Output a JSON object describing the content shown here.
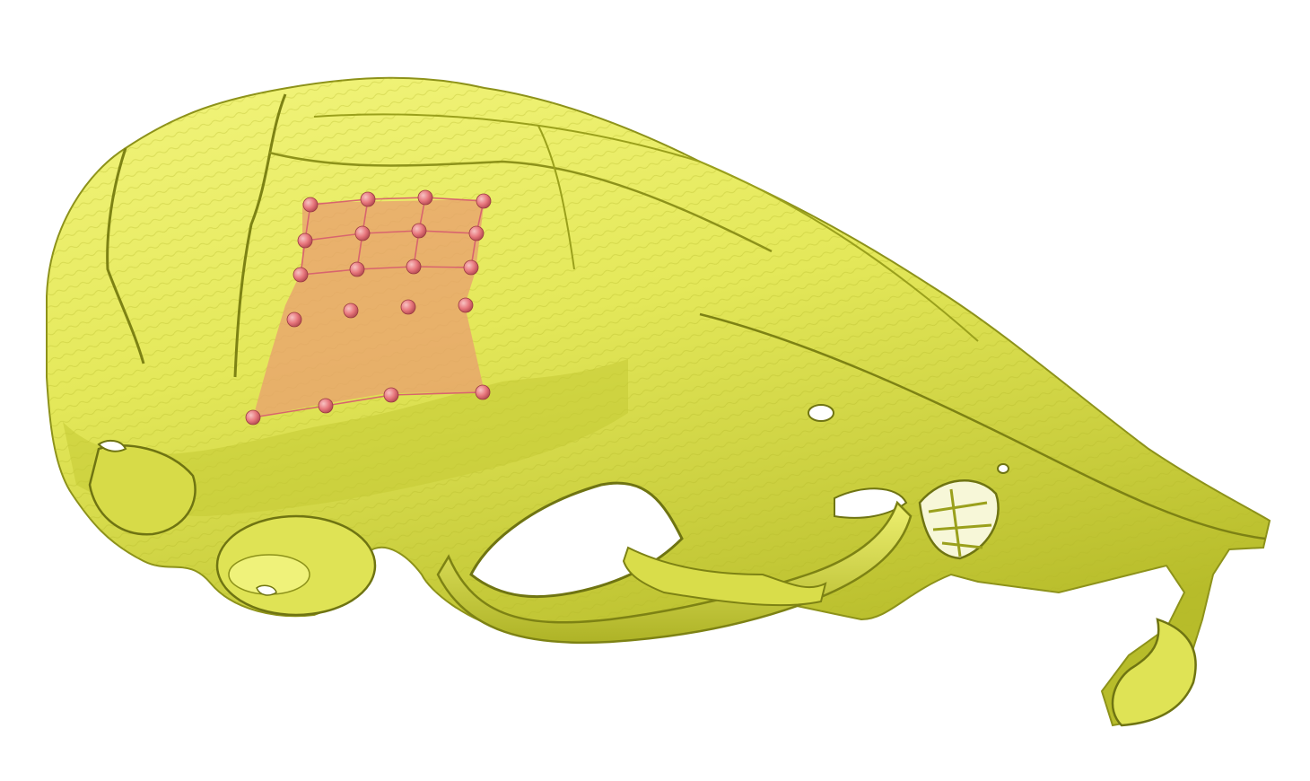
{
  "viewer": {
    "background_color": "#ffffff",
    "model": {
      "name": "skull-model",
      "surface_color": "#e4e85a",
      "surface_highlight": "#f2f47c",
      "surface_shadow": "#9aa01c",
      "surface_dark": "#5f6410"
    },
    "patch": {
      "fill_color": "#e9a36e",
      "grid_color": "#d8646e",
      "point_color": "#e8787e",
      "point_highlight": "#f7c3c3",
      "point_shadow": "#b24850",
      "rows": 5,
      "cols": 4
    }
  }
}
